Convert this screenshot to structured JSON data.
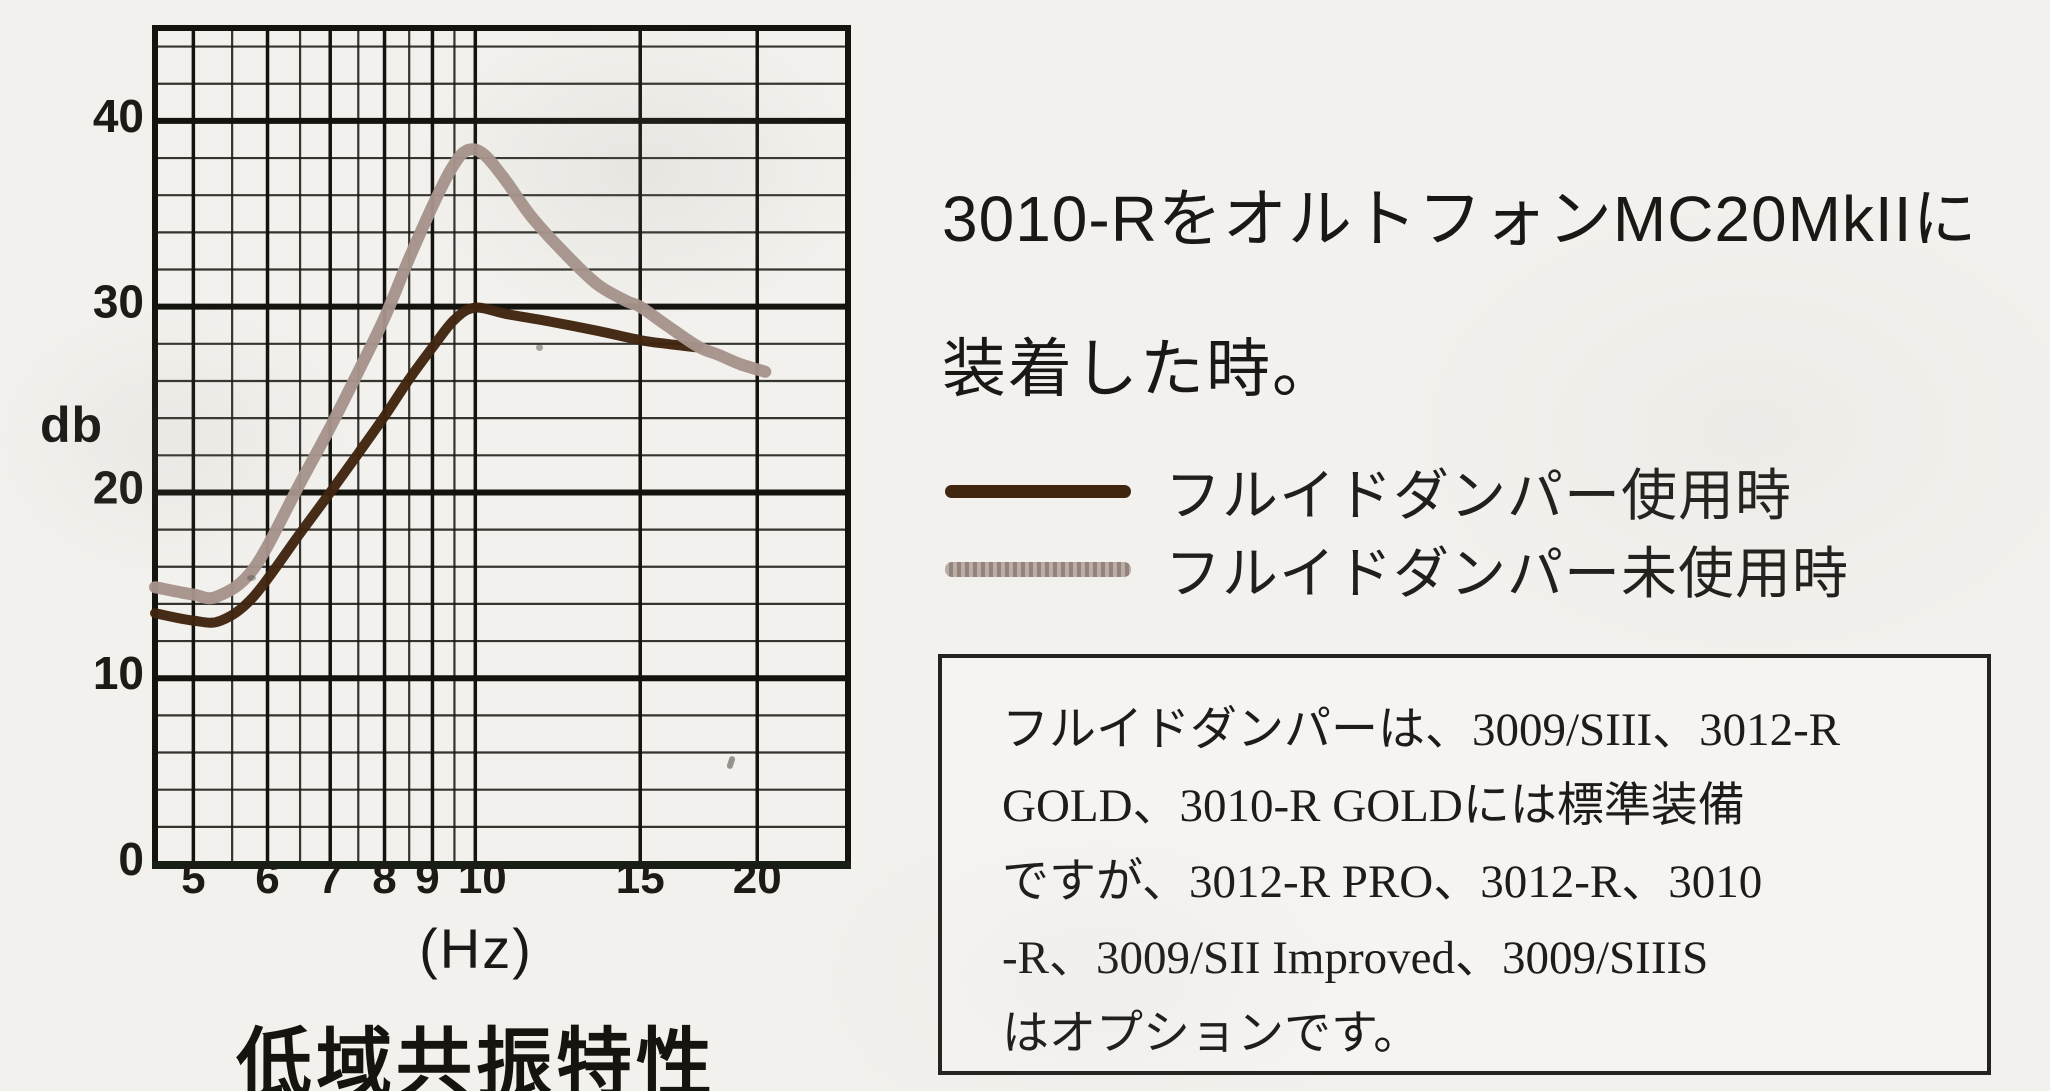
{
  "page": {
    "background_color": "#f3f1ed"
  },
  "chart": {
    "y_unit_label": "db",
    "x_unit_label": "(Hz)",
    "caption": "低域共振特性",
    "grid_color": "#1b1a15",
    "border_color": "#14130e"
  },
  "annotation": {
    "title_line1": "3010-RをオルトフォンMC20MkIIに",
    "title_line2": "装着した時。"
  },
  "legend": {
    "position": "right",
    "items": [
      {
        "label": "フルイドダンパー使用時",
        "color": "#40250f",
        "style": "solid"
      },
      {
        "label": "フルイドダンパー未使用時",
        "color": "#a08e85",
        "style": "halftone"
      }
    ]
  },
  "note_box": {
    "lines": [
      "フルイドダンパーは、3009/SIII、3012-R",
      "GOLD、3010-R GOLDには標準装備",
      "ですが、3012-R PRO、3012-R、3010",
      "-R、3009/SII Improved、3009/SIIIS",
      "はオプションです。"
    ]
  },
  "chart_data": {
    "type": "line",
    "title": "低域共振特性",
    "xlabel": "(Hz)",
    "ylabel": "db",
    "x_scale": "log",
    "x_range": [
      4.55,
      25
    ],
    "y_range": [
      0,
      45
    ],
    "grid": true,
    "x_major_ticks": [
      5,
      6,
      7,
      8,
      9,
      10,
      15,
      20
    ],
    "x_minor_ticks": [
      5.5,
      6.5,
      7.5,
      8.5,
      9.5
    ],
    "y_major_ticks": [
      0,
      10,
      20,
      30,
      40
    ],
    "y_minor_step": 2,
    "series": [
      {
        "name": "フルイドダンパー使用時",
        "color": "#40250f",
        "stroke_width": 10,
        "points": [
          [
            4.55,
            13.5
          ],
          [
            5.0,
            13.1
          ],
          [
            5.35,
            13.1
          ],
          [
            5.8,
            14.4
          ],
          [
            6.5,
            17.8
          ],
          [
            7.0,
            20.0
          ],
          [
            7.5,
            22.1
          ],
          [
            8.0,
            24.1
          ],
          [
            8.5,
            26.1
          ],
          [
            9.0,
            27.8
          ],
          [
            9.5,
            29.3
          ],
          [
            10.0,
            29.95
          ],
          [
            10.8,
            29.6
          ],
          [
            12.0,
            29.2
          ],
          [
            13.5,
            28.7
          ],
          [
            15.0,
            28.2
          ],
          [
            16.0,
            28.0
          ],
          [
            17.3,
            27.8
          ]
        ]
      },
      {
        "name": "フルイドダンパー未使用時",
        "color": "#a6948b",
        "stroke_width": 12,
        "points": [
          [
            4.55,
            14.9
          ],
          [
            5.0,
            14.5
          ],
          [
            5.3,
            14.4
          ],
          [
            5.8,
            15.9
          ],
          [
            6.5,
            20.5
          ],
          [
            7.0,
            23.5
          ],
          [
            7.5,
            26.5
          ],
          [
            8.0,
            29.4
          ],
          [
            8.5,
            32.6
          ],
          [
            9.0,
            35.4
          ],
          [
            9.4,
            37.3
          ],
          [
            9.75,
            38.35
          ],
          [
            10.15,
            38.3
          ],
          [
            10.7,
            37.0
          ],
          [
            11.5,
            34.8
          ],
          [
            12.5,
            32.8
          ],
          [
            13.5,
            31.2
          ],
          [
            14.5,
            30.3
          ],
          [
            15.0,
            30.0
          ],
          [
            16.0,
            29.0
          ],
          [
            17.3,
            27.85
          ],
          [
            18.2,
            27.4
          ],
          [
            19.2,
            26.9
          ],
          [
            20.4,
            26.5
          ]
        ]
      }
    ]
  }
}
